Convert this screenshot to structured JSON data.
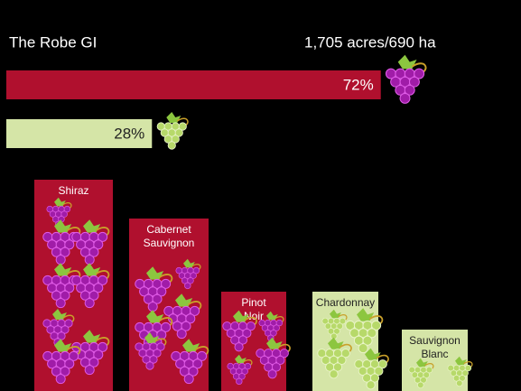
{
  "header": {
    "title": "The Robe GI",
    "area": "1,705 acres/690 ha"
  },
  "bars": [
    {
      "value": 72,
      "label": "72%",
      "color": "#b0102e"
    },
    {
      "value": 28,
      "label": "28%",
      "color": "#d5e5a7"
    }
  ],
  "varieties": [
    {
      "name": "Shiraz",
      "color": "#b0102e"
    },
    {
      "name": "Cabernet Sauvignon",
      "color": "#b0102e"
    },
    {
      "name": "Pinot Noir",
      "color": "#b0102e"
    },
    {
      "name": "Chardonnay",
      "color": "#d5e5a7"
    },
    {
      "name": "Sauvignon Blanc",
      "color": "#d5e5a7"
    }
  ]
}
